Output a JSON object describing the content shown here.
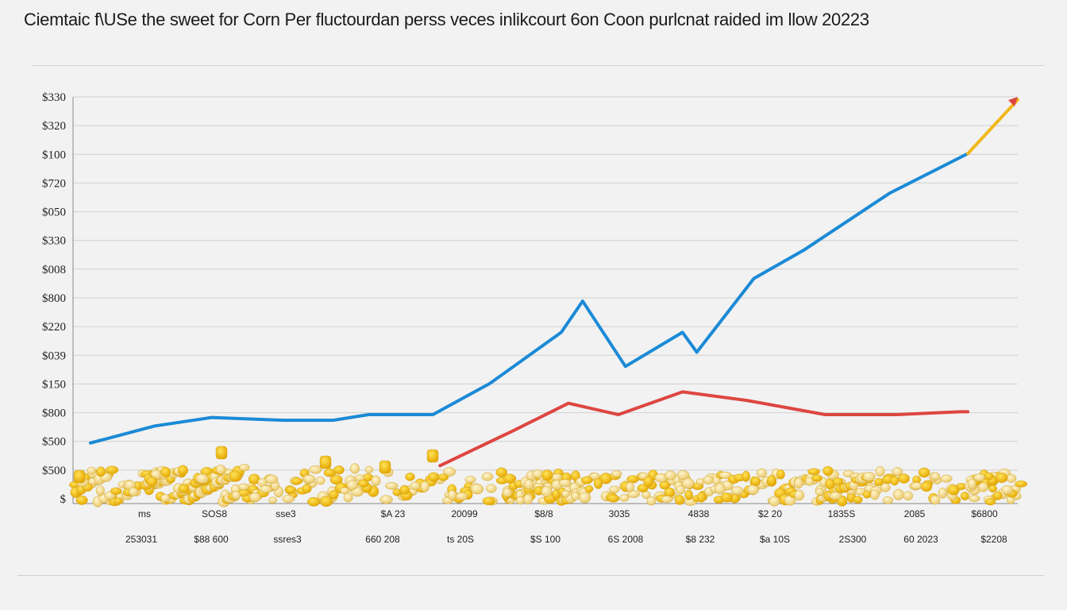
{
  "title": "Ciemtaic f\\USe the sweet for Corn Per fluctourdan perss veces inlikcourt 6on Coon purlcnat raided im llow 20223",
  "chart_data": {
    "type": "line",
    "title": "Ciemtaic f\\USe the sweet for Corn Per fluctourdan perss veces inlikcourt 6on Coon purlcnat raided im llow 20223",
    "xlabel": "",
    "ylabel": "",
    "grid": true,
    "legend": "none",
    "y_tick_labels": [
      "$330",
      "$320",
      "$100",
      "$720",
      "$050",
      "$330",
      "$008",
      "$800",
      "$220",
      "$039",
      "$150",
      "$800",
      "$500",
      "$500",
      "$"
    ],
    "ylim": [
      0,
      14
    ],
    "x_tick_labels_row1": [
      "ms",
      "SOS8",
      "sse3",
      "$A 23",
      "20099",
      "$8/8",
      "3035",
      "4838",
      "$2 20",
      "1835S",
      "2085",
      "$6800"
    ],
    "x_tick_labels_row2": [
      "253031",
      "$88 600",
      "ssres3",
      "660 208",
      "ts 20S",
      "$S 100",
      "6S 2008",
      "$8 232",
      "$a 10S",
      "2S300",
      "60 2023",
      "$2208"
    ],
    "series": [
      {
        "color": "#1b8ad6",
        "x": [
          0.0,
          0.9,
          1.7,
          2.7,
          3.4,
          3.9,
          4.8,
          5.6,
          6.6,
          6.9,
          7.5,
          8.3,
          8.5,
          9.3,
          10.0,
          11.2,
          12.3
        ],
        "y": [
          1.8,
          2.4,
          2.7,
          2.6,
          2.6,
          2.8,
          2.8,
          3.9,
          5.7,
          6.8,
          4.5,
          5.7,
          5.0,
          7.6,
          8.6,
          10.6,
          12.0
        ]
      },
      {
        "color": "#f2b81a",
        "x": [
          12.3,
          13.0
        ],
        "y": [
          12.0,
          13.9
        ]
      },
      {
        "color": "#dd4640",
        "x": [
          4.9,
          5.9,
          6.7,
          7.4,
          8.3,
          9.2,
          10.3,
          11.3,
          12.2,
          12.3
        ],
        "y": [
          1.0,
          2.2,
          3.2,
          2.8,
          3.6,
          3.3,
          2.8,
          2.8,
          2.9,
          2.9
        ]
      }
    ],
    "arrow": {
      "color": "#dd4640",
      "x": 13.0,
      "y": 14.0
    }
  }
}
